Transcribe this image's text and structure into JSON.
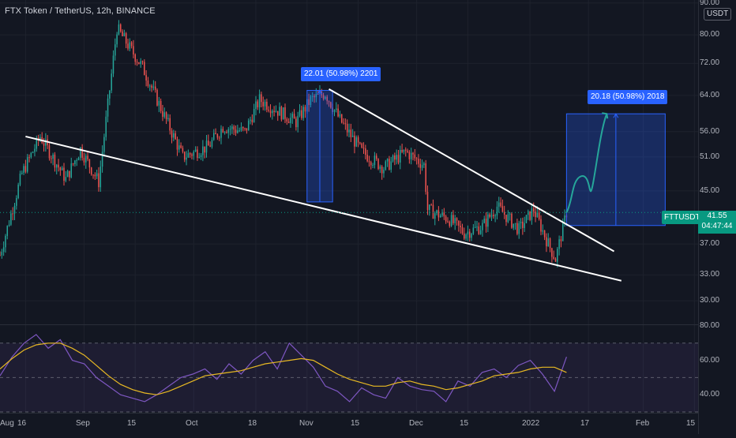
{
  "header": {
    "title": "FTX Token / TetherUS, 12h, BINANCE",
    "currency": "USDT"
  },
  "symbol_tag": "FTTUSDT",
  "last_price": {
    "value": "41.55",
    "countdown": "04:47:44"
  },
  "annotations": [
    {
      "label": "22.01 (50.98%) 2201",
      "from_price": 43.2,
      "to_price": 65.2
    },
    {
      "label": "20.18 (50.98%) 2018",
      "from_price": 39.6,
      "to_price": 59.8
    }
  ],
  "chart_data": [
    {
      "type": "candlestick",
      "title": "FTX Token / TetherUS, 12h, BINANCE",
      "y_scale": "log",
      "ylim": [
        27.5,
        91
      ],
      "y_ticks": [
        "90.00",
        "80.00",
        "72.00",
        "64.00",
        "56.00",
        "51.00",
        "45.00",
        "41.55",
        "37.00",
        "33.00",
        "30.00"
      ],
      "x_ticks": [
        "Aug",
        "16",
        "Sep",
        "15",
        "Oct",
        "18",
        "Nov",
        "15",
        "Dec",
        "15",
        "2022",
        "17",
        "Feb",
        "15"
      ],
      "xlim": [
        "2021-08-09",
        "2022-02-16"
      ],
      "colors": {
        "up": "#26a69a",
        "down": "#ef5350",
        "annotation": "#2962ff"
      },
      "anchors": [
        {
          "date": "2021-08-09",
          "price": 35.5
        },
        {
          "date": "2021-08-15",
          "price": 48.0
        },
        {
          "date": "2021-08-20",
          "price": 55.0
        },
        {
          "date": "2021-08-27",
          "price": 47.0
        },
        {
          "date": "2021-08-31",
          "price": 52.5
        },
        {
          "date": "2021-09-05",
          "price": 46.5
        },
        {
          "date": "2021-09-10",
          "price": 82.0
        },
        {
          "date": "2021-09-17",
          "price": 71.0
        },
        {
          "date": "2021-09-28",
          "price": 51.0
        },
        {
          "date": "2021-10-05",
          "price": 53.0
        },
        {
          "date": "2021-10-09",
          "price": 57.0
        },
        {
          "date": "2021-10-15",
          "price": 56.0
        },
        {
          "date": "2021-10-19",
          "price": 63.0
        },
        {
          "date": "2021-10-25",
          "price": 60.0
        },
        {
          "date": "2021-10-29",
          "price": 58.0
        },
        {
          "date": "2021-11-02",
          "price": 63.0
        },
        {
          "date": "2021-11-06",
          "price": 64.5
        },
        {
          "date": "2021-11-10",
          "price": 58.5
        },
        {
          "date": "2021-11-16",
          "price": 52.0
        },
        {
          "date": "2021-11-22",
          "price": 49.0
        },
        {
          "date": "2021-11-28",
          "price": 52.0
        },
        {
          "date": "2021-12-03",
          "price": 49.5
        },
        {
          "date": "2021-12-04",
          "price": 42.0
        },
        {
          "date": "2021-12-10",
          "price": 40.5
        },
        {
          "date": "2021-12-14",
          "price": 38.5
        },
        {
          "date": "2021-12-19",
          "price": 39.5
        },
        {
          "date": "2021-12-23",
          "price": 42.5
        },
        {
          "date": "2021-12-29",
          "price": 39.0
        },
        {
          "date": "2022-01-02",
          "price": 42.0
        },
        {
          "date": "2022-01-06",
          "price": 37.0
        },
        {
          "date": "2022-01-08",
          "price": 35.0
        },
        {
          "date": "2022-01-11",
          "price": 41.55
        }
      ],
      "trendlines": [
        {
          "from": {
            "date": "2021-08-16",
            "price": 55.0
          },
          "to": {
            "date": "2022-01-26",
            "price": 32.3
          }
        },
        {
          "from": {
            "date": "2021-11-07",
            "price": 65.5
          },
          "to": {
            "date": "2022-01-24",
            "price": 36.0
          }
        }
      ],
      "projection_path": [
        {
          "date": "2022-01-11",
          "price": 41.55
        },
        {
          "date": "2022-01-15",
          "price": 47.5
        },
        {
          "date": "2022-01-18",
          "price": 45.5
        },
        {
          "date": "2022-01-22",
          "price": 59.8
        }
      ]
    },
    {
      "type": "line",
      "series": [
        {
          "values": [
            55,
            61,
            66,
            69,
            70,
            70,
            67,
            63,
            57,
            51,
            46,
            43,
            41,
            40,
            42,
            45,
            48,
            51,
            52,
            53,
            54,
            56,
            58,
            59,
            60,
            61,
            60,
            56,
            52,
            49,
            47,
            45,
            45,
            47,
            48,
            46,
            45,
            43,
            44,
            46,
            48,
            51,
            52,
            53,
            55,
            56,
            56,
            53
          ]
        },
        {
          "values": [
            51,
            62,
            70,
            75,
            67,
            72,
            60,
            58,
            50,
            45,
            40,
            38,
            36,
            40,
            45,
            50,
            52,
            55,
            49,
            58,
            52,
            60,
            65,
            55,
            70,
            63,
            56,
            45,
            42,
            36,
            44,
            40,
            38,
            50,
            45,
            43,
            42,
            36,
            48,
            45,
            53,
            55,
            50,
            57,
            60,
            52,
            42,
            62
          ]
        }
      ],
      "colors": [
        "#e8b923",
        "#7e57c2"
      ],
      "ylim": [
        30,
        80
      ],
      "y_ticks": [
        "80.00",
        "60.00",
        "40.00"
      ],
      "levels": [
        70,
        50,
        30
      ]
    }
  ]
}
